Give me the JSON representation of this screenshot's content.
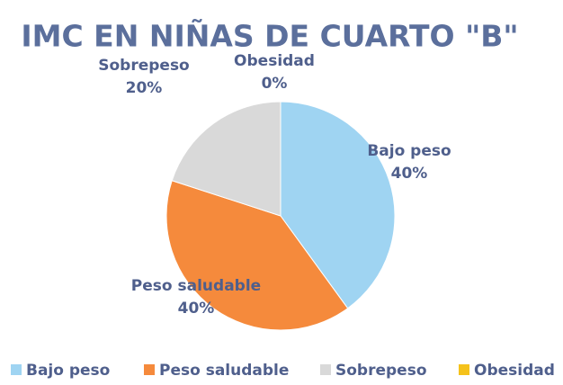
{
  "chart_data": {
    "type": "pie",
    "title": "IMC EN NIÑAS DE CUARTO \"B\"",
    "categories": [
      "Bajo peso",
      "Peso saludable",
      "Sobrepeso",
      "Obesidad"
    ],
    "values": [
      40,
      40,
      20,
      0
    ],
    "value_labels": [
      "40%",
      "40%",
      "20%",
      "0%"
    ],
    "colors": [
      "#9fd4f2",
      "#f58a3c",
      "#d9d9d9",
      "#f5c21b"
    ],
    "legend": "bottom"
  }
}
